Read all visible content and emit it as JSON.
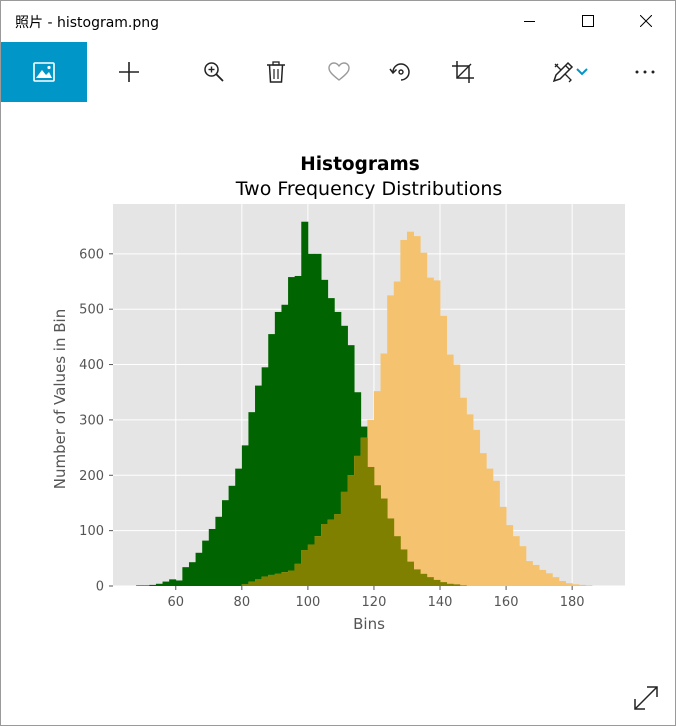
{
  "window": {
    "title": "照片 - histogram.png",
    "controls": {
      "minimize": "minimize-icon",
      "maximize": "maximize-icon",
      "close": "close-icon"
    }
  },
  "toolbar": {
    "items": [
      {
        "name": "view-image",
        "icon": "image-icon",
        "active": true
      },
      {
        "name": "add",
        "icon": "plus-icon"
      },
      {
        "name": "zoom",
        "icon": "zoom-in-icon"
      },
      {
        "name": "delete",
        "icon": "trash-icon"
      },
      {
        "name": "favorite",
        "icon": "heart-icon"
      },
      {
        "name": "rotate",
        "icon": "rotate-icon"
      },
      {
        "name": "crop",
        "icon": "crop-icon"
      },
      {
        "name": "edit",
        "icon": "edit-pen-icon"
      },
      {
        "name": "edit-dropdown",
        "icon": "chevron-down-icon"
      },
      {
        "name": "more",
        "icon": "more-icon"
      }
    ],
    "accent": "#0096c7"
  },
  "chart_data": {
    "type": "bar",
    "title": "Histograms",
    "subtitle": "Two Frequency Distributions",
    "xlabel": "Bins",
    "ylabel": "Number of Values in Bin",
    "xlim": [
      41,
      196
    ],
    "ylim": [
      0,
      690
    ],
    "xticks": [
      60,
      80,
      100,
      120,
      140,
      160,
      180
    ],
    "yticks": [
      0,
      100,
      200,
      300,
      400,
      500,
      600
    ],
    "grid": true,
    "background": "#e5e5e5",
    "bin_width": 2,
    "overlap_color": "#808000",
    "series": [
      {
        "color": "#006400",
        "x": [
          48,
          50,
          52,
          54,
          56,
          58,
          60,
          62,
          64,
          66,
          68,
          70,
          72,
          74,
          76,
          78,
          80,
          82,
          84,
          86,
          88,
          90,
          92,
          94,
          96,
          98,
          100,
          102,
          104,
          106,
          108,
          110,
          112,
          114,
          116,
          118,
          120,
          122,
          124,
          126,
          128,
          130,
          132,
          134,
          136,
          138,
          140,
          142,
          144,
          146,
          148,
          150
        ],
        "values": [
          1,
          1,
          2,
          4,
          8,
          12,
          10,
          34,
          43,
          60,
          82,
          103,
          125,
          155,
          181,
          212,
          254,
          314,
          362,
          395,
          455,
          495,
          508,
          558,
          560,
          658,
          600,
          600,
          553,
          520,
          495,
          470,
          435,
          350,
          288,
          215,
          182,
          158,
          122,
          90,
          66,
          44,
          30,
          22,
          16,
          11,
          7,
          4,
          3,
          1,
          0,
          0
        ]
      },
      {
        "color": "#f5c36f",
        "x": [
          80,
          82,
          84,
          86,
          88,
          90,
          92,
          94,
          96,
          98,
          100,
          102,
          104,
          106,
          108,
          110,
          112,
          114,
          116,
          118,
          120,
          122,
          124,
          126,
          128,
          130,
          132,
          134,
          136,
          138,
          140,
          142,
          144,
          146,
          148,
          150,
          152,
          154,
          156,
          158,
          160,
          162,
          164,
          166,
          168,
          170,
          172,
          174,
          176,
          178,
          180,
          182,
          184
        ],
        "values": [
          3,
          8,
          12,
          17,
          20,
          22,
          25,
          28,
          40,
          65,
          75,
          90,
          112,
          120,
          130,
          170,
          200,
          235,
          268,
          300,
          352,
          420,
          525,
          550,
          625,
          640,
          632,
          602,
          557,
          552,
          488,
          418,
          400,
          340,
          310,
          282,
          240,
          212,
          190,
          143,
          110,
          90,
          72,
          45,
          38,
          29,
          23,
          16,
          9,
          5,
          3,
          2,
          1
        ]
      }
    ]
  }
}
